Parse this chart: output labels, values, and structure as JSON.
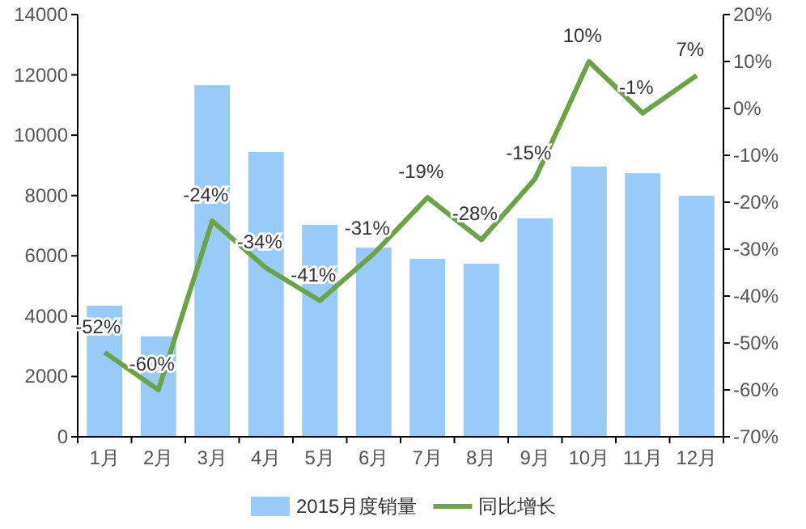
{
  "chart_data": {
    "type": "bar",
    "categories": [
      "1月",
      "2月",
      "3月",
      "4月",
      "5月",
      "6月",
      "7月",
      "8月",
      "9月",
      "10月",
      "11月",
      "12月"
    ],
    "series": [
      {
        "name": "2015月度销量",
        "color": "#99cbf8",
        "values": [
          4350,
          3330,
          11660,
          9440,
          7030,
          6270,
          5900,
          5740,
          7240,
          8960,
          8740,
          7990
        ]
      },
      {
        "name": "同比增长",
        "type": "line",
        "axis": "y2",
        "color": "#6aa444",
        "values": [
          -52,
          -60,
          -24,
          -34,
          -41,
          -31,
          -19,
          -28,
          -15,
          10,
          -1,
          7
        ],
        "value_labels": [
          "-52%",
          "-60%",
          "-24%",
          "-34%",
          "-41%",
          "-31%",
          "-19%",
          "-28%",
          "-15%",
          "10%",
          "-1%",
          "7%"
        ]
      }
    ],
    "ylim": [
      0,
      14000
    ],
    "yticks": [
      0,
      2000,
      4000,
      6000,
      8000,
      10000,
      12000,
      14000
    ],
    "y2lim": [
      -70,
      20
    ],
    "y2ticks": [
      {
        "value": -70,
        "label": "-70%"
      },
      {
        "value": -60,
        "label": "-60%"
      },
      {
        "value": -50,
        "label": "-50%"
      },
      {
        "value": -40,
        "label": "-40%"
      },
      {
        "value": -30,
        "label": "-30%"
      },
      {
        "value": -20,
        "label": "-20%"
      },
      {
        "value": -10,
        "label": "-10%"
      },
      {
        "value": 0,
        "label": "0%"
      },
      {
        "value": 10,
        "label": "10%"
      },
      {
        "value": 20,
        "label": "20%"
      }
    ],
    "legend": "bottom",
    "line_style": "solid",
    "marker": "none"
  }
}
